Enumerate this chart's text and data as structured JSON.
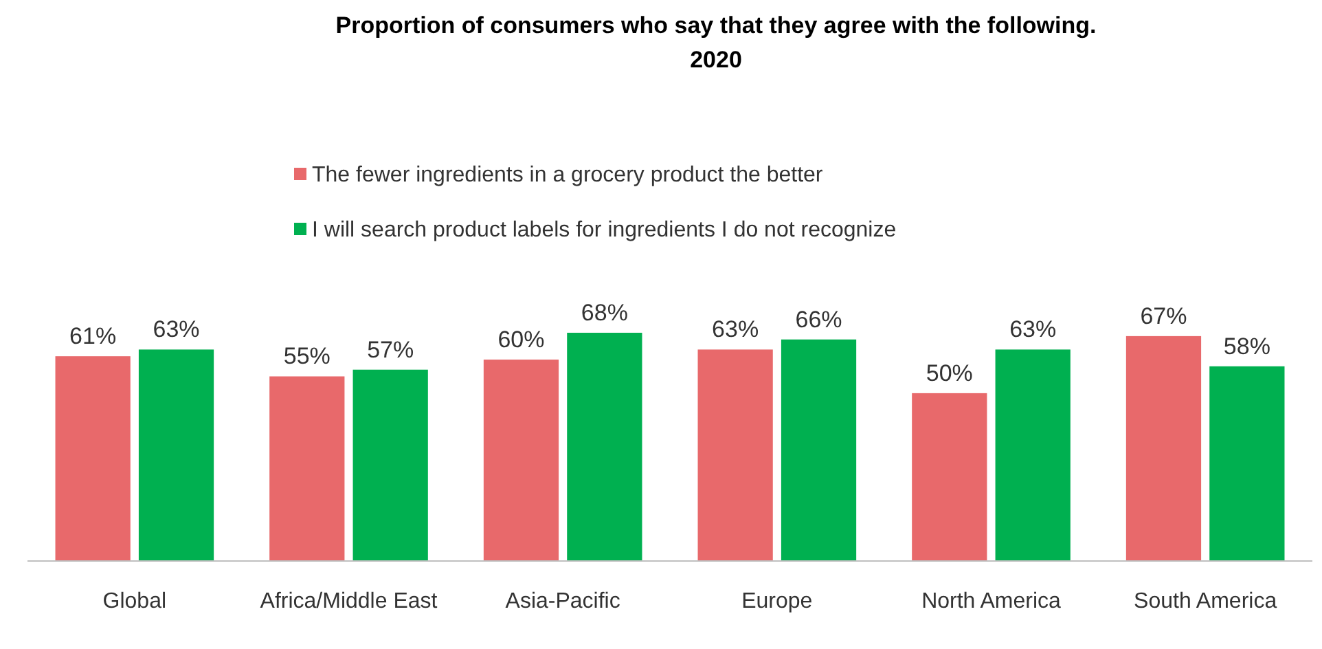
{
  "chart_data": {
    "type": "bar",
    "title": "Proportion of consumers who say that they agree with the following.\n2020",
    "categories": [
      "Global",
      "Africa/Middle East",
      "Asia-Pacific",
      "Europe",
      "North America",
      "South America"
    ],
    "series": [
      {
        "name": "The fewer ingredients in a grocery product the better",
        "color": "#e8696b",
        "values": [
          61,
          55,
          60,
          63,
          50,
          67
        ],
        "value_labels": [
          "61%",
          "55%",
          "60%",
          "63%",
          "50%",
          "67%"
        ]
      },
      {
        "name": "I will search product labels for ingredients I do not recognize",
        "color": "#00b050",
        "values": [
          63,
          57,
          68,
          66,
          63,
          58
        ],
        "value_labels": [
          "63%",
          "57%",
          "68%",
          "66%",
          "63%",
          "58%"
        ]
      }
    ],
    "legend": "top"
  }
}
